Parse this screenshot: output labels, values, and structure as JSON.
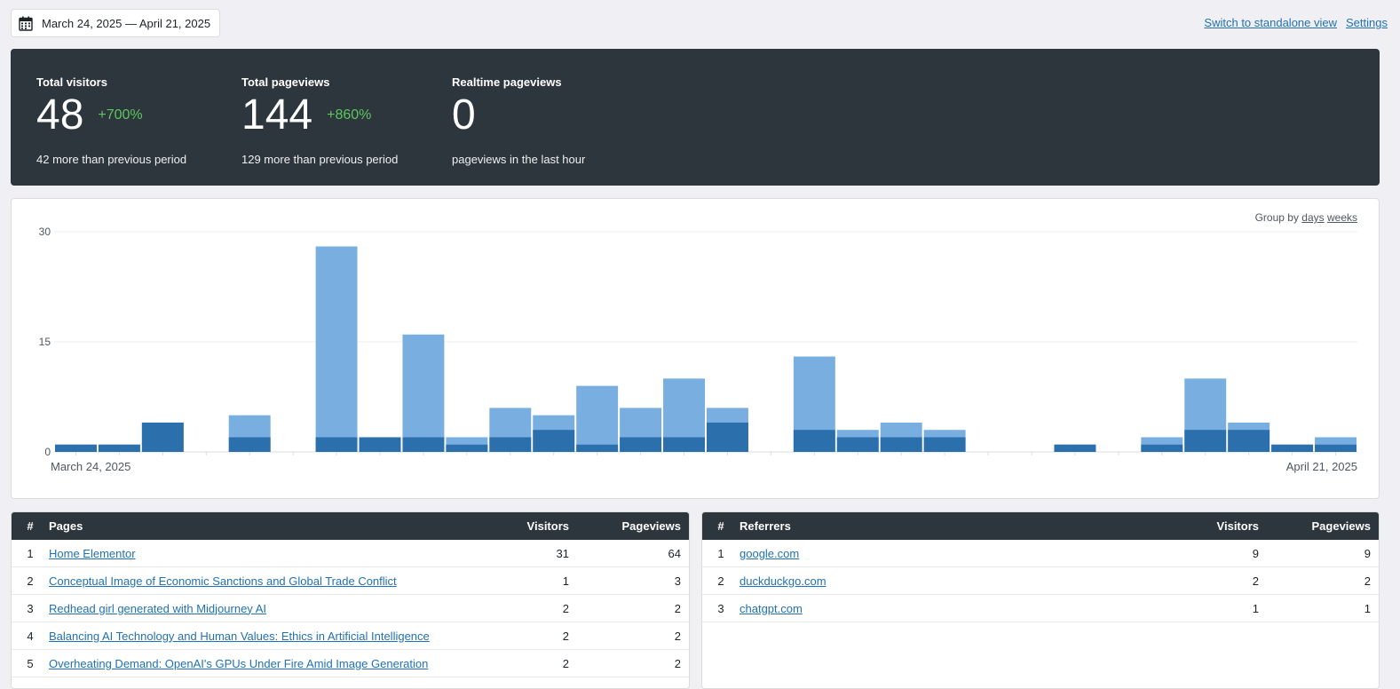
{
  "daterange": {
    "label": "March 24, 2025 — April 21, 2025"
  },
  "toplinks": {
    "standalone": "Switch to standalone view",
    "settings": "Settings"
  },
  "kpis": {
    "visitors": {
      "label": "Total visitors",
      "value": "48",
      "change": "+700%",
      "sub": "42 more than previous period"
    },
    "pageviews": {
      "label": "Total pageviews",
      "value": "144",
      "change": "+860%",
      "sub": "129 more than previous period"
    },
    "realtime": {
      "label": "Realtime pageviews",
      "value": "0",
      "sub": "pageviews in the last hour"
    }
  },
  "groupby": {
    "label": "Group by",
    "days": "days",
    "weeks": "weeks"
  },
  "chart_data": {
    "type": "bar",
    "stacked": true,
    "ylim": [
      0,
      30
    ],
    "yticks": [
      "0",
      "15",
      "30"
    ],
    "x_start_label": "March 24, 2025",
    "x_end_label": "April 21, 2025",
    "colors": {
      "visitors": "#2c6fad",
      "pageviews": "#78afe0",
      "grid": "#eeeeee"
    },
    "series": [
      {
        "key": "visitors",
        "values": [
          1,
          1,
          4,
          0,
          2,
          0,
          2,
          2,
          2,
          1,
          2,
          3,
          1,
          2,
          2,
          4,
          0,
          3,
          2,
          2,
          2,
          0,
          0,
          1,
          0,
          1,
          3,
          3,
          1,
          1
        ]
      },
      {
        "key": "pageviews",
        "values": [
          1,
          1,
          4,
          0,
          5,
          0,
          28,
          2,
          16,
          2,
          6,
          5,
          9,
          6,
          10,
          6,
          0,
          13,
          3,
          4,
          3,
          0,
          0,
          1,
          0,
          2,
          10,
          4,
          1,
          2
        ]
      }
    ]
  },
  "pages": {
    "headers": {
      "num": "#",
      "name": "Pages",
      "visitors": "Visitors",
      "pageviews": "Pageviews"
    },
    "rows": [
      {
        "num": "1",
        "name": "Home Elementor",
        "visitors": "31",
        "pageviews": "64"
      },
      {
        "num": "2",
        "name": "Conceptual Image of Economic Sanctions and Global Trade Conflict",
        "visitors": "1",
        "pageviews": "3"
      },
      {
        "num": "3",
        "name": "Redhead girl generated with Midjourney AI",
        "visitors": "2",
        "pageviews": "2"
      },
      {
        "num": "4",
        "name": "Balancing AI Technology and Human Values: Ethics in Artificial Intelligence",
        "visitors": "2",
        "pageviews": "2"
      },
      {
        "num": "5",
        "name": "Overheating Demand: OpenAI's GPUs Under Fire Amid Image Generation",
        "visitors": "2",
        "pageviews": "2"
      }
    ]
  },
  "referrers": {
    "headers": {
      "num": "#",
      "name": "Referrers",
      "visitors": "Visitors",
      "pageviews": "Pageviews"
    },
    "rows": [
      {
        "num": "1",
        "name": "google.com",
        "visitors": "9",
        "pageviews": "9"
      },
      {
        "num": "2",
        "name": "duckduckgo.com",
        "visitors": "2",
        "pageviews": "2"
      },
      {
        "num": "3",
        "name": "chatgpt.com",
        "visitors": "1",
        "pageviews": "1"
      }
    ]
  }
}
